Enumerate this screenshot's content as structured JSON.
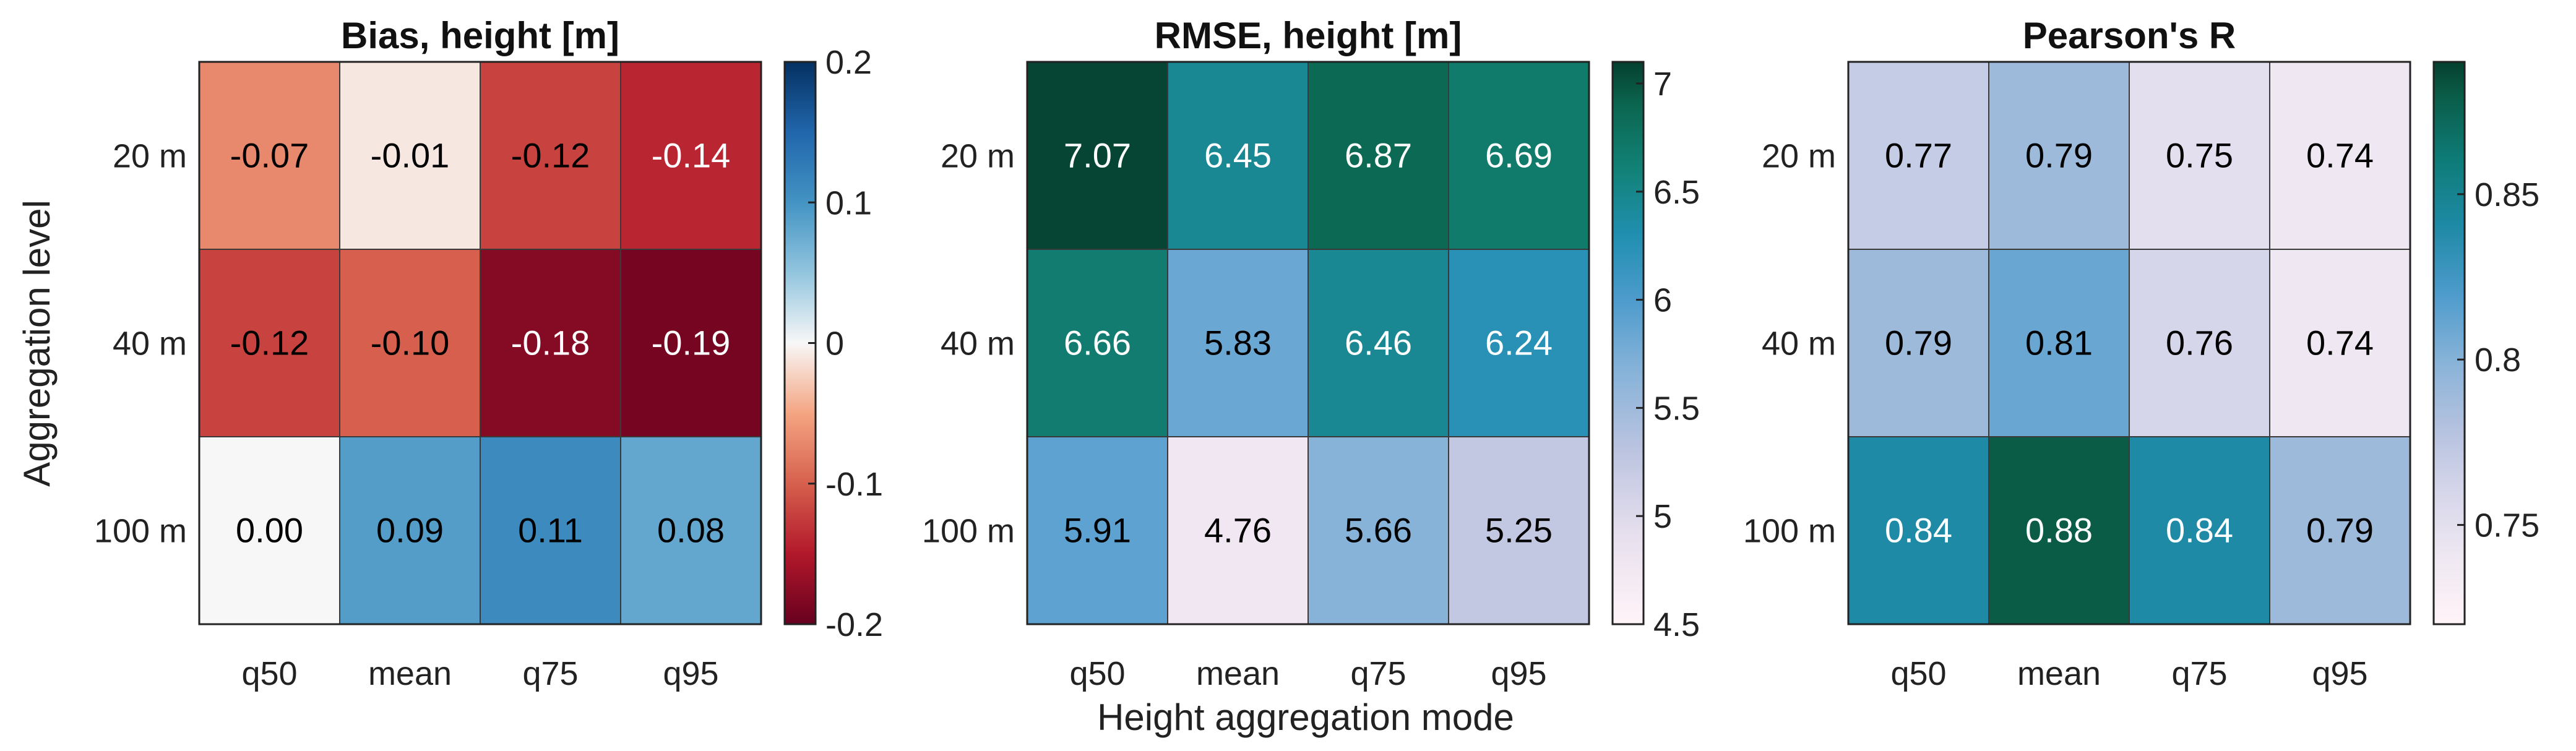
{
  "figure": {
    "xlabel": "Height aggregation mode",
    "ylabel": "Aggregation level"
  },
  "chart_data": [
    {
      "type": "heatmap",
      "title": "Bias, height [m]",
      "categories": [
        "q50",
        "mean",
        "q75",
        "q95"
      ],
      "rows": [
        "20 m",
        "40 m",
        "100 m"
      ],
      "values": [
        [
          -0.07,
          -0.01,
          -0.12,
          -0.14
        ],
        [
          -0.12,
          -0.1,
          -0.18,
          -0.19
        ],
        [
          0.0,
          0.09,
          0.11,
          0.08
        ]
      ],
      "labels": [
        [
          "-0.07",
          "-0.01",
          "-0.12",
          "-0.14"
        ],
        [
          "-0.12",
          "-0.10",
          "-0.18",
          "-0.19"
        ],
        [
          "0.00",
          "0.09",
          "0.11",
          "0.08"
        ]
      ],
      "label_colors": [
        [
          "#000000",
          "#000000",
          "#000000",
          "#ffffff"
        ],
        [
          "#000000",
          "#000000",
          "#ffffff",
          "#ffffff"
        ],
        [
          "#000000",
          "#000000",
          "#000000",
          "#000000"
        ]
      ],
      "clim": [
        -0.2,
        0.2
      ],
      "colorbar": {
        "ticks": [
          0.2,
          0.1,
          0,
          -0.1,
          -0.2
        ],
        "tick_labels": [
          "0.2",
          "0.1",
          "0",
          "-0.1",
          "-0.2"
        ],
        "colormap": [
          [
            -0.2,
            "#67001f"
          ],
          [
            -0.15,
            "#b2182b"
          ],
          [
            -0.1,
            "#d6604d"
          ],
          [
            -0.05,
            "#f4a582"
          ],
          [
            0,
            "#f7f7f7"
          ],
          [
            0.05,
            "#92c5de"
          ],
          [
            0.1,
            "#4393c3"
          ],
          [
            0.15,
            "#2166ac"
          ],
          [
            0.2,
            "#053061"
          ]
        ]
      }
    },
    {
      "type": "heatmap",
      "title": "RMSE, height [m]",
      "categories": [
        "q50",
        "mean",
        "q75",
        "q95"
      ],
      "rows": [
        "20 m",
        "40 m",
        "100 m"
      ],
      "values": [
        [
          7.07,
          6.45,
          6.87,
          6.69
        ],
        [
          6.66,
          5.83,
          6.46,
          6.24
        ],
        [
          5.91,
          4.76,
          5.66,
          5.25
        ]
      ],
      "labels": [
        [
          "7.07",
          "6.45",
          "6.87",
          "6.69"
        ],
        [
          "6.66",
          "5.83",
          "6.46",
          "6.24"
        ],
        [
          "5.91",
          "4.76",
          "5.66",
          "5.25"
        ]
      ],
      "label_colors": [
        [
          "#ffffff",
          "#ffffff",
          "#ffffff",
          "#ffffff"
        ],
        [
          "#ffffff",
          "#000000",
          "#ffffff",
          "#ffffff"
        ],
        [
          "#000000",
          "#000000",
          "#000000",
          "#000000"
        ]
      ],
      "clim": [
        4.5,
        7.1
      ],
      "colorbar": {
        "ticks": [
          7,
          6.5,
          6,
          5.5,
          5,
          4.5
        ],
        "tick_labels": [
          "7",
          "6.5",
          "6",
          "5.5",
          "5",
          "4.5"
        ],
        "colormap": [
          [
            4.5,
            "#fff4f8"
          ],
          [
            4.9,
            "#e8e0ee"
          ],
          [
            5.3,
            "#bcc4e0"
          ],
          [
            5.7,
            "#82b1d8"
          ],
          [
            6.0,
            "#4d9bcc"
          ],
          [
            6.3,
            "#208fb0"
          ],
          [
            6.6,
            "#128277"
          ],
          [
            6.9,
            "#0b6650"
          ],
          [
            7.1,
            "#053f2e"
          ]
        ]
      }
    },
    {
      "type": "heatmap",
      "title": "Pearson's R",
      "categories": [
        "q50",
        "mean",
        "q75",
        "q95"
      ],
      "rows": [
        "20 m",
        "40 m",
        "100 m"
      ],
      "values": [
        [
          0.77,
          0.79,
          0.75,
          0.74
        ],
        [
          0.79,
          0.81,
          0.76,
          0.74
        ],
        [
          0.84,
          0.88,
          0.84,
          0.79
        ]
      ],
      "labels": [
        [
          "0.77",
          "0.79",
          "0.75",
          "0.74"
        ],
        [
          "0.79",
          "0.81",
          "0.76",
          "0.74"
        ],
        [
          "0.84",
          "0.88",
          "0.84",
          "0.79"
        ]
      ],
      "label_colors": [
        [
          "#000000",
          "#000000",
          "#000000",
          "#000000"
        ],
        [
          "#000000",
          "#000000",
          "#000000",
          "#000000"
        ],
        [
          "#ffffff",
          "#ffffff",
          "#ffffff",
          "#000000"
        ]
      ],
      "clim": [
        0.72,
        0.89
      ],
      "colorbar": {
        "ticks": [
          0.85,
          0.8,
          0.75
        ],
        "tick_labels": [
          "0.85",
          "0.8",
          "0.75"
        ],
        "colormap": [
          [
            0.72,
            "#fff4f8"
          ],
          [
            0.74,
            "#efe8f2"
          ],
          [
            0.76,
            "#d6d6ea"
          ],
          [
            0.78,
            "#b3c1df"
          ],
          [
            0.8,
            "#86b2d7"
          ],
          [
            0.82,
            "#4d9bcc"
          ],
          [
            0.84,
            "#1f8aa6"
          ],
          [
            0.86,
            "#0e7c78"
          ],
          [
            0.88,
            "#0a5c47"
          ],
          [
            0.89,
            "#053f2e"
          ]
        ]
      }
    }
  ]
}
